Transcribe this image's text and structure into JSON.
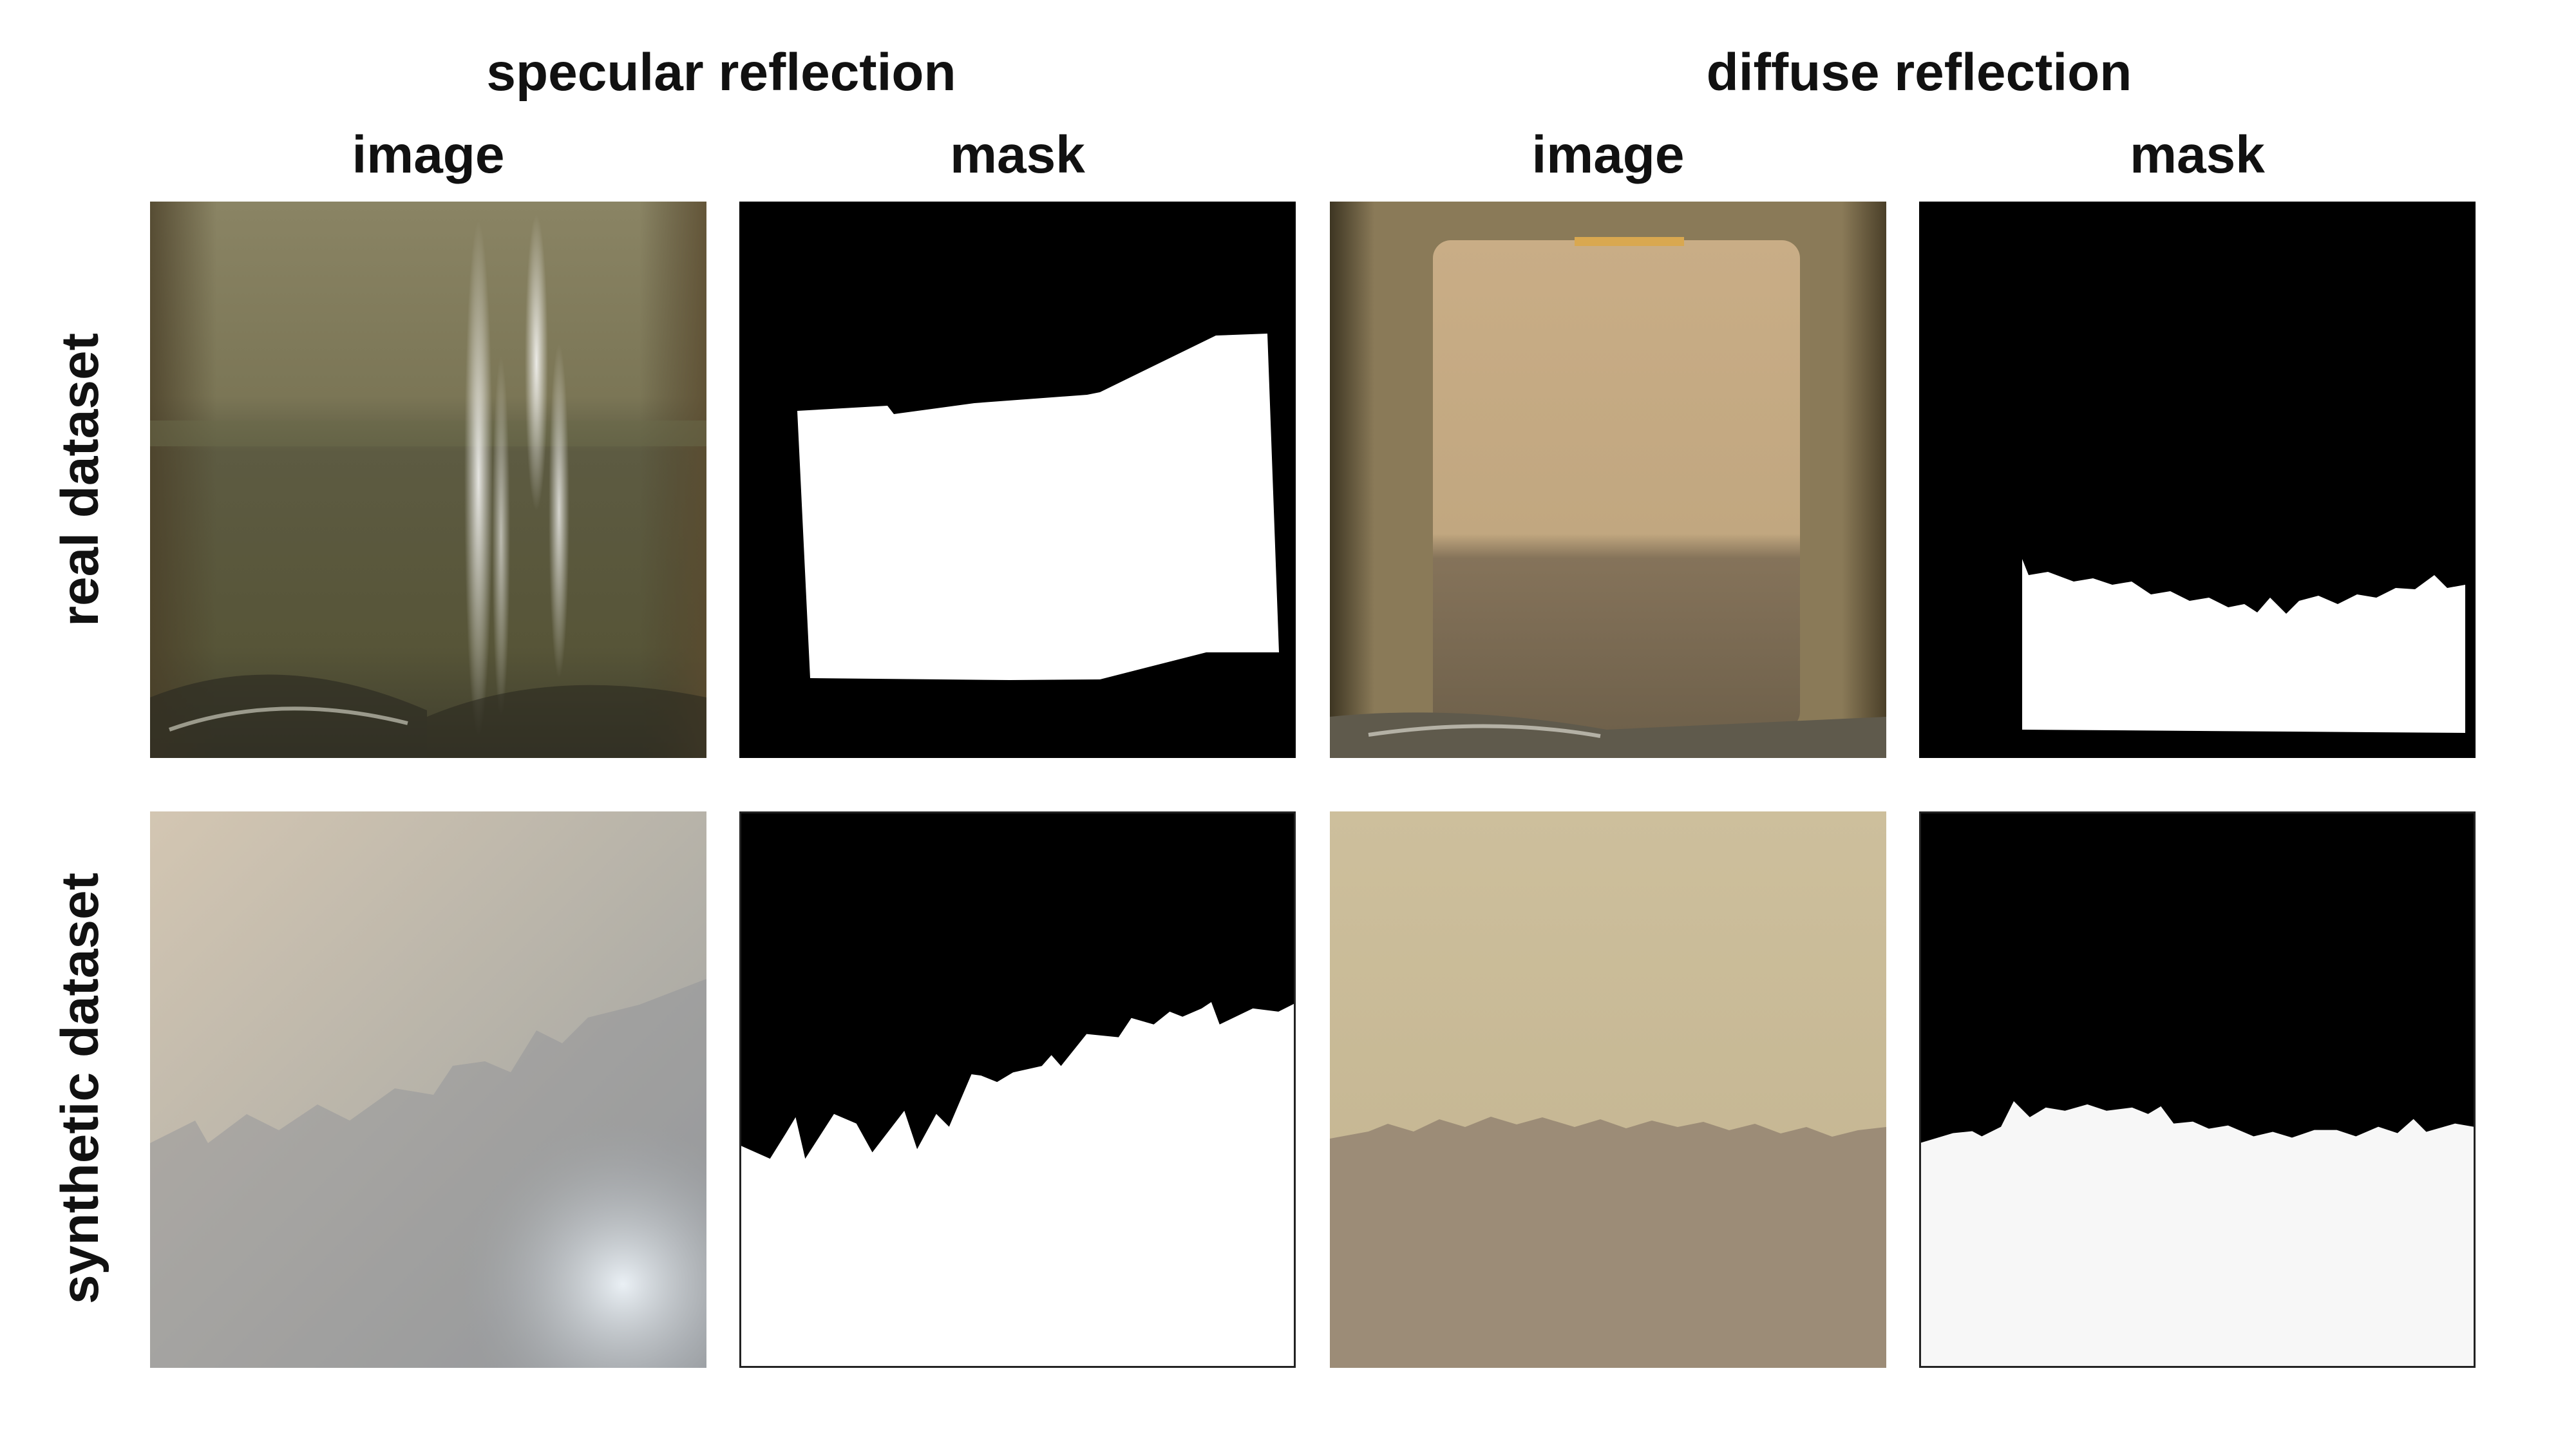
{
  "groups": {
    "specular": "specular reflection",
    "diffuse": "diffuse reflection"
  },
  "columns": {
    "spec_image": "image",
    "spec_mask": "mask",
    "diff_image": "image",
    "diff_mask": "mask"
  },
  "rows": {
    "real": "real dataset",
    "synthetic": "synthetic dataset"
  },
  "colors": {
    "mask_background": "#000000",
    "mask_foreground": "#ffffff"
  }
}
